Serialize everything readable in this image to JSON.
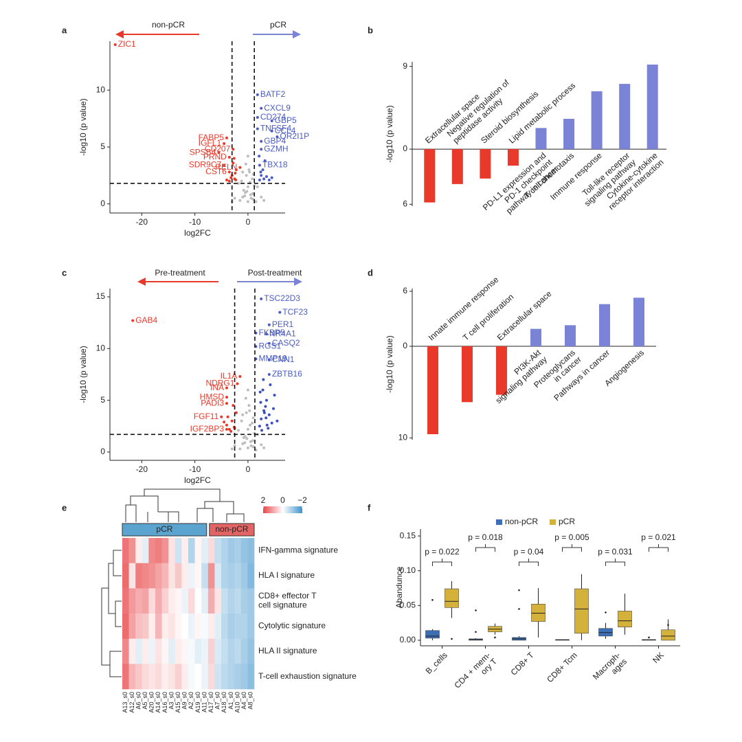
{
  "chart_data": [
    {
      "panel": "a",
      "type": "scatter",
      "xlabel": "log2FC",
      "ylabel": "-log10 (p value)",
      "xlim": [
        -26,
        7
      ],
      "ylim": [
        -0.8,
        14.3
      ],
      "xticks": [
        -20,
        -10,
        0
      ],
      "yticks": [
        0,
        5,
        10
      ],
      "vlines": [
        -3,
        1.2
      ],
      "hline": 1.8,
      "arrows": [
        {
          "label": "non-pCR",
          "color": "#e8392a"
        },
        {
          "label": "pCR",
          "color": "#7b83d6"
        }
      ],
      "series": [
        {
          "color": "#bdbdbd",
          "x": [
            -1.5,
            -1,
            -0.5,
            0,
            0.5,
            1,
            1.5,
            -1.2,
            -0.3,
            0.2,
            0.8,
            1.2,
            -0.8,
            0,
            0.6,
            -1.8,
            1.8,
            -0.4,
            0.3,
            -2.5,
            2.5,
            -3,
            3,
            -1,
            1,
            0,
            -0.2,
            0.4,
            -0.6,
            0.9
          ],
          "y": [
            0.3,
            0.6,
            1,
            1.5,
            0.8,
            0.4,
            0.2,
            2,
            2.5,
            3,
            2.2,
            1.6,
            1.2,
            0.2,
            0.5,
            1.8,
            1.5,
            3.5,
            2.8,
            0.5,
            0.6,
            0.2,
            0.3,
            2.8,
            2.6,
            4.2,
            1.1,
            1.9,
            0.7,
            0.9
          ]
        },
        {
          "color": "#e8392a",
          "x": [
            -2.5,
            -3,
            -2.2,
            -3.5,
            -2.8,
            -2.4,
            -3.2,
            -4,
            -2.6,
            -2.3
          ],
          "y": [
            2.2,
            2.5,
            3,
            2,
            3.6,
            2.7,
            2.3,
            2.1,
            4,
            2.1
          ]
        },
        {
          "color": "#4a5bc4",
          "x": [
            2.2,
            2.5,
            3,
            3.5,
            4,
            2.8,
            2.4,
            3.2,
            4.5,
            2.1
          ],
          "y": [
            2.1,
            2.5,
            2.2,
            2.4,
            2.1,
            3,
            2.8,
            3.8,
            2.3,
            4.2
          ]
        },
        {
          "color": "#e8392a",
          "x": [
            -25,
            -4,
            -4.5,
            -2.8,
            -5.5,
            -3.5,
            -4.5,
            -1.5,
            -3.5
          ],
          "y": [
            14,
            5.8,
            5.3,
            4.8,
            4.5,
            4.1,
            3.4,
            3.2,
            2.8
          ],
          "labels": [
            "ZIC1",
            "FABP5",
            "IGFL1",
            "CD207",
            "SPSB4",
            "PRND",
            "SDR9C7",
            "RELN",
            "CST6"
          ]
        },
        {
          "color": "#4a5bc4",
          "x": [
            1.8,
            2.5,
            1.8,
            4.5,
            1.8,
            4.5,
            5.5,
            2.5,
            2.5,
            2.2
          ],
          "y": [
            9.6,
            8.4,
            7.6,
            7.3,
            6.6,
            6.4,
            5.9,
            5.5,
            4.8,
            3.4
          ],
          "labels": [
            "BATF2",
            "CXCL9",
            "CD274",
            "GBP5",
            "TNFSF4",
            "CCL4",
            "OR2I1P",
            "GBP4",
            "GZMH",
            "TBX18"
          ]
        }
      ]
    },
    {
      "panel": "b",
      "type": "bar",
      "ylabel": "-log10 (p value)",
      "ylim": [
        -6.2,
        9.5
      ],
      "yticks": [
        9,
        0,
        {
          "value": -6,
          "label": "6"
        }
      ],
      "negative_color": "#e8392a",
      "positive_color": "#7b83d6",
      "categories": [
        "Extracellular space",
        "Negative regulation of\npeptidase activity",
        "Steroid biosynthesis",
        "Lipid metabolic process",
        "PD-L1 expression and\nPD-1 checkpoint\npathway in cancer",
        "T cell chemotaxis",
        "Immune response",
        "Toll-like receptor\nsignaling pathway",
        "Cytokine-cytokine\nreceptor interaction"
      ],
      "values": [
        -5.8,
        -3.8,
        -3.2,
        -1.8,
        2.3,
        3.3,
        6.3,
        7.1,
        9.2
      ]
    },
    {
      "panel": "c",
      "type": "scatter",
      "xlabel": "log2FC",
      "ylabel": "-log10 (p value)",
      "xlim": [
        -26,
        7
      ],
      "ylim": [
        -0.8,
        15.8
      ],
      "xticks": [
        -20,
        -10,
        0
      ],
      "yticks": [
        0,
        5,
        10,
        15
      ],
      "vlines": [
        -2.5,
        1.3
      ],
      "hline": 1.7,
      "arrows": [
        {
          "label": "Pre-treatment",
          "color": "#e8392a"
        },
        {
          "label": "Post-treatment",
          "color": "#7b83d6"
        }
      ],
      "series": [
        {
          "color": "#bdbdbd",
          "x": [
            -1.5,
            -1,
            -0.5,
            0,
            0.5,
            1,
            1.5,
            -1.2,
            -0.3,
            0.2,
            0.8,
            1.2,
            -0.8,
            0,
            0.6,
            -1.8,
            1.8,
            -0.4,
            0.3,
            -2.5,
            2.5,
            -3,
            3,
            -1,
            1,
            0,
            -0.2,
            0.4,
            -0.6,
            0.9
          ],
          "y": [
            0.3,
            0.8,
            1.5,
            2.2,
            1,
            0.5,
            0.2,
            3,
            3.8,
            4.5,
            2.8,
            1.8,
            1.4,
            0.4,
            0.6,
            2.1,
            1.7,
            5.2,
            4,
            0.6,
            0.7,
            0.3,
            0.4,
            3.6,
            3.3,
            6,
            1.3,
            2.6,
            0.9,
            1.1
          ]
        },
        {
          "color": "#e8392a",
          "x": [
            -2.5,
            -3,
            -3.5,
            -2.2,
            -4,
            -2.8,
            -3.2,
            -4.5,
            -2.6,
            -3.8
          ],
          "y": [
            2.3,
            3,
            2.2,
            3.8,
            2.6,
            4.5,
            2,
            2.9,
            2.4,
            3.4
          ]
        },
        {
          "color": "#3a4fc0",
          "x": [
            2.2,
            2.5,
            3,
            3.5,
            4,
            4.5,
            5,
            2.8,
            3.3,
            3.8,
            2.4,
            2.6,
            4.2,
            5.5,
            3.1,
            2.3,
            3.6,
            4.8,
            2.9,
            3.4
          ],
          "y": [
            2.5,
            3.2,
            4,
            5,
            3.6,
            2.8,
            5.5,
            6,
            4.4,
            2.3,
            4.8,
            2.1,
            6.5,
            3,
            3.8,
            5.8,
            2.6,
            4.2,
            7,
            3.3
          ]
        },
        {
          "color": "#e8392a",
          "x": [
            -21.7,
            -1.5,
            -2,
            -4,
            -4,
            -4,
            -5,
            -4
          ],
          "y": [
            12.7,
            7.3,
            6.6,
            6.2,
            5.3,
            4.7,
            3.4,
            2.2
          ],
          "labels": [
            "GAB4",
            "IL1A",
            "NDRG1",
            "INA",
            "HMSD",
            "PADI3",
            "FGF11",
            "IGF2BP3"
          ]
        },
        {
          "color": "#4a5bc4",
          "x": [
            2.5,
            6,
            4,
            1.5,
            3.5,
            1.5,
            4,
            1.5,
            4,
            4
          ],
          "y": [
            14.8,
            13.5,
            12.3,
            11.5,
            11.4,
            10.2,
            10.5,
            9,
            8.9,
            7.5
          ],
          "labels": [
            "TSC22D3",
            "TCF23",
            "PER1",
            "FKBP5",
            "NR4A1",
            "RGS1",
            "CASQ2",
            "MMP19",
            "CNN1",
            "ZBTB16"
          ]
        }
      ]
    },
    {
      "panel": "d",
      "type": "bar",
      "ylabel": "-log10 (p value)",
      "ylim": [
        -10.2,
        6.3
      ],
      "yticks": [
        6,
        0,
        {
          "value": -10,
          "label": "10"
        }
      ],
      "negative_color": "#e8392a",
      "positive_color": "#7b83d6",
      "categories": [
        "Innate immune response",
        "T cell proliferation",
        "Extracellular space",
        "PI3K-Akt\nsignaling pathway",
        "Proteoglycans\nin cancer",
        "Pathways in cancer",
        "Angiogenesis"
      ],
      "values": [
        -9.6,
        -6.1,
        -5.3,
        1.9,
        2.3,
        4.6,
        5.3
      ]
    },
    {
      "panel": "e",
      "type": "heatmap",
      "rows": [
        "IFN-gamma signature",
        "HLA I signature",
        "CD8+ effector T\ncell signature",
        "Cytolytic signature",
        "HLA II signature",
        "T-cell exhaustion signature"
      ],
      "columns": [
        "A13_s0",
        "A12_s0",
        "A6_s0",
        "A5_s0",
        "A20_s0",
        "A14_s0",
        "A16_s0",
        "A3_s0",
        "A15_s0",
        "A9_s0",
        "A2_s0",
        "A19_s0",
        "A11_s0",
        "A17_s0",
        "A7_s0",
        "A18_s0",
        "A1_s0",
        "A10_s0",
        "A4_s0",
        "A8_s0"
      ],
      "values": [
        [
          1.5,
          1.2,
          0.2,
          -0.3,
          1.3,
          1.4,
          1.2,
          0.3,
          -0.5,
          0.2,
          -0.8,
          0.1,
          -0.3,
          0.4,
          -0.6,
          -0.8,
          -1.0,
          -0.9,
          -1.1,
          -1.2
        ],
        [
          1.6,
          0.3,
          1.4,
          1.3,
          1.2,
          1.0,
          0.8,
          0.3,
          0.6,
          0.2,
          -0.2,
          0.1,
          -0.6,
          1.2,
          -0.4,
          -0.8,
          -0.9,
          -0.8,
          -1.0,
          -1.3
        ],
        [
          1.5,
          1.1,
          0.9,
          1.0,
          0.4,
          0.9,
          0.5,
          0.2,
          0.1,
          -0.2,
          0.4,
          0.0,
          -0.3,
          0.9,
          0.3,
          -0.6,
          -0.8,
          -0.7,
          -0.9,
          -1.0
        ],
        [
          1.6,
          1.0,
          0.7,
          0.6,
          0.2,
          0.8,
          0.2,
          0.3,
          0.1,
          0.0,
          -0.2,
          0.1,
          -0.1,
          0.2,
          -0.3,
          -0.7,
          -0.9,
          -0.8,
          -0.8,
          -1.0
        ],
        [
          1.3,
          0.2,
          -0.3,
          0.2,
          -0.2,
          0.3,
          0.1,
          -0.3,
          0.2,
          0.1,
          -0.1,
          -0.3,
          -0.2,
          0.5,
          -0.4,
          -0.6,
          -0.8,
          -0.7,
          -0.9,
          -1.1
        ],
        [
          1.5,
          0.8,
          0.6,
          0.4,
          0.3,
          0.4,
          0.2,
          0.3,
          0.5,
          0.2,
          -0.1,
          0.0,
          -0.2,
          0.4,
          -0.5,
          -0.7,
          -0.8,
          -0.9,
          -1.0,
          -1.2
        ]
      ],
      "clim": [
        -2,
        2
      ],
      "colors": [
        "#3f93cc",
        "#ffffff",
        "#e8474a"
      ],
      "colorbar_ticks": [
        2,
        0,
        {
          "value": -2,
          "label": "−2"
        }
      ],
      "groups": [
        {
          "name": "pCR",
          "size": 13,
          "color": "#5ba4cf"
        },
        {
          "name": "non-pCR",
          "size": 7,
          "color": "#e36464"
        }
      ]
    },
    {
      "panel": "f",
      "type": "box",
      "ylabel": "Abandunce",
      "categories": [
        "B_cells",
        "CD4 + mem-\nory T",
        "CD8+ T",
        "CD8+ Tcm",
        "Macroph-\nages",
        "NK"
      ],
      "ylim": [
        -0.008,
        0.16
      ],
      "yticks": [
        {
          "value": 0,
          "label": "0.00"
        },
        {
          "value": 0.05,
          "label": "0.05"
        },
        {
          "value": 0.1,
          "label": "0.10"
        },
        {
          "value": 0.15,
          "label": "0.15"
        }
      ],
      "annotations": [
        "p = 0.022",
        "p = 0.018",
        "p = 0.04",
        "p = 0.005",
        "p = 0.031",
        "p = 0.021"
      ],
      "series": [
        {
          "name": "non-pCR",
          "color": "#3d6fb5",
          "boxes": [
            [
              0,
              0.003,
              0.006,
              0.014,
              0.016
            ],
            [
              0,
              0,
              0.001,
              0.002,
              0.003
            ],
            [
              0,
              0,
              0.002,
              0.004,
              0.006
            ],
            [
              0,
              0,
              0.0005,
              0.001,
              0.001
            ],
            [
              0.002,
              0.006,
              0.011,
              0.017,
              0.025
            ],
            [
              0,
              0,
              0.0005,
              0.001,
              0.001
            ]
          ],
          "outliers": [
            [
              0.058
            ],
            [
              0.043,
              0.012
            ],
            [
              0.072,
              0.045
            ],
            [],
            [
              0.04
            ],
            [
              0.004
            ]
          ]
        },
        {
          "name": "pCR",
          "color": "#d4b13a",
          "boxes": [
            [
              0.032,
              0.047,
              0.056,
              0.074,
              0.085
            ],
            [
              0.008,
              0.012,
              0.016,
              0.02,
              0.024
            ],
            [
              0.004,
              0.027,
              0.039,
              0.052,
              0.075
            ],
            [
              0,
              0.01,
              0.045,
              0.074,
              0.095
            ],
            [
              0.008,
              0.019,
              0.028,
              0.042,
              0.067
            ],
            [
              0,
              0,
              0.006,
              0.015,
              0.03
            ]
          ],
          "outliers": [
            [
              0.002
            ],
            [
              0.004
            ],
            [],
            [],
            [],
            [
              0.022
            ]
          ]
        }
      ]
    }
  ]
}
